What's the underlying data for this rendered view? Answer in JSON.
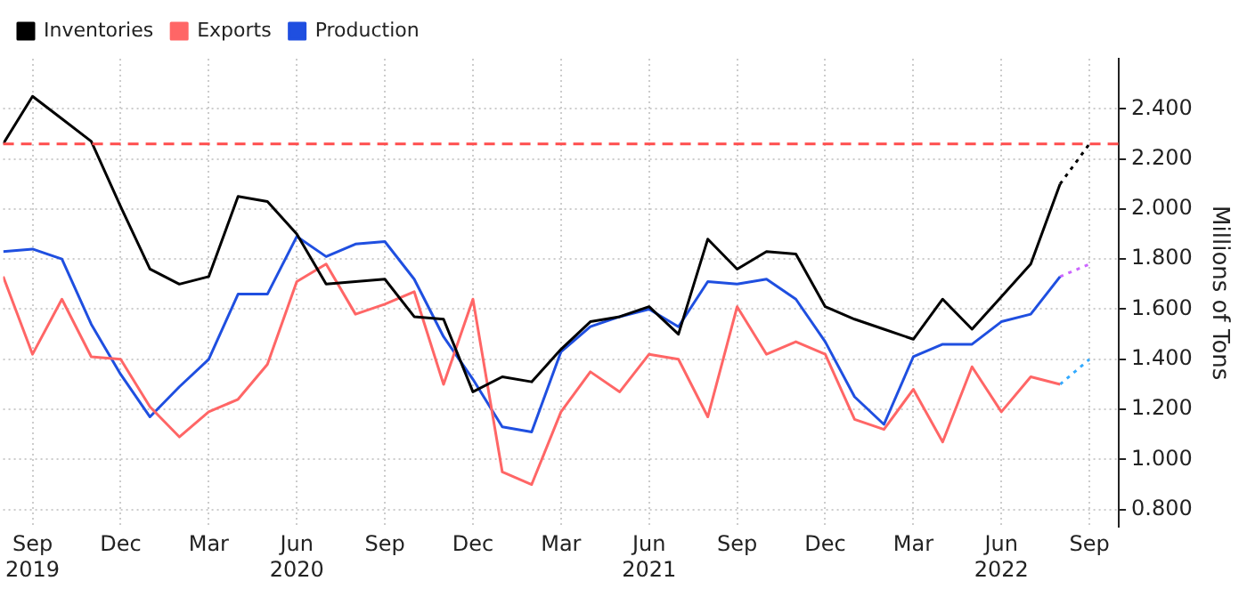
{
  "chart_data": {
    "type": "line",
    "ylabel": "Millions of Tons",
    "x": [
      "2019-08",
      "2019-09",
      "2019-10",
      "2019-11",
      "2019-12",
      "2020-01",
      "2020-02",
      "2020-03",
      "2020-04",
      "2020-05",
      "2020-06",
      "2020-07",
      "2020-08",
      "2020-09",
      "2020-10",
      "2020-11",
      "2020-12",
      "2021-01",
      "2021-02",
      "2021-03",
      "2021-04",
      "2021-05",
      "2021-06",
      "2021-07",
      "2021-08",
      "2021-09",
      "2021-10",
      "2021-11",
      "2021-12",
      "2022-01",
      "2022-02",
      "2022-03",
      "2022-04",
      "2022-05",
      "2022-06",
      "2022-07",
      "2022-08"
    ],
    "series": [
      {
        "name": "Inventories",
        "color": "#000000",
        "values": [
          2.26,
          2.45,
          2.36,
          2.27,
          2.01,
          1.76,
          1.7,
          1.73,
          2.05,
          2.03,
          1.9,
          1.7,
          1.71,
          1.72,
          1.57,
          1.56,
          1.27,
          1.33,
          1.31,
          1.44,
          1.55,
          1.57,
          1.61,
          1.5,
          1.88,
          1.76,
          1.83,
          1.82,
          1.61,
          1.56,
          1.52,
          1.48,
          1.64,
          1.52,
          1.65,
          1.78,
          2.1
        ]
      },
      {
        "name": "Exports",
        "color": "#ff6666",
        "values": [
          1.73,
          1.42,
          1.64,
          1.41,
          1.4,
          1.21,
          1.09,
          1.19,
          1.24,
          1.38,
          1.71,
          1.78,
          1.58,
          1.62,
          1.67,
          1.3,
          1.64,
          0.95,
          0.9,
          1.19,
          1.35,
          1.27,
          1.42,
          1.4,
          1.17,
          1.61,
          1.42,
          1.47,
          1.42,
          1.16,
          1.12,
          1.28,
          1.07,
          1.37,
          1.19,
          1.33,
          1.3
        ]
      },
      {
        "name": "Production",
        "color": "#1f4fe0",
        "values": [
          1.83,
          1.84,
          1.8,
          1.54,
          1.34,
          1.17,
          1.29,
          1.4,
          1.66,
          1.66,
          1.89,
          1.81,
          1.86,
          1.87,
          1.72,
          1.49,
          1.32,
          1.13,
          1.11,
          1.43,
          1.53,
          1.57,
          1.6,
          1.53,
          1.71,
          1.7,
          1.72,
          1.64,
          1.47,
          1.25,
          1.14,
          1.41,
          1.46,
          1.46,
          1.55,
          1.58,
          1.73
        ]
      },
      {
        "x": [
          "2022-08",
          "2022-09"
        ],
        "color": "#000000",
        "line_style": "dotted",
        "values": [
          2.1,
          2.26
        ]
      },
      {
        "x": [
          "2022-08",
          "2022-09"
        ],
        "color": "#cc66ff",
        "line_style": "dotted",
        "values": [
          1.73,
          1.78
        ]
      },
      {
        "x": [
          "2022-08",
          "2022-09"
        ],
        "color": "#33aaff",
        "line_style": "dotted",
        "values": [
          1.3,
          1.4
        ]
      }
    ],
    "xlim": [
      "2019-08",
      "2022-10"
    ],
    "xticks": [
      {
        "value": "2019-09",
        "label": "Sep\n2019"
      },
      {
        "value": "2019-12",
        "label": "Dec"
      },
      {
        "value": "2020-03",
        "label": "Mar"
      },
      {
        "value": "2020-06",
        "label": "Jun\n2020"
      },
      {
        "value": "2020-09",
        "label": "Sep"
      },
      {
        "value": "2020-12",
        "label": "Dec"
      },
      {
        "value": "2021-03",
        "label": "Mar"
      },
      {
        "value": "2021-06",
        "label": "Jun\n2021"
      },
      {
        "value": "2021-09",
        "label": "Sep"
      },
      {
        "value": "2021-12",
        "label": "Dec"
      },
      {
        "value": "2022-03",
        "label": "Mar"
      },
      {
        "value": "2022-06",
        "label": "Jun\n2022"
      },
      {
        "value": "2022-09",
        "label": "Sep"
      }
    ],
    "ylim": [
      0.73,
      2.6
    ],
    "yticks": [
      {
        "value": 0.8,
        "label": "0.800"
      },
      {
        "value": 1.0,
        "label": "1.000"
      },
      {
        "value": 1.2,
        "label": "1.200"
      },
      {
        "value": 1.4,
        "label": "1.400"
      },
      {
        "value": 1.6,
        "label": "1.600"
      },
      {
        "value": 1.8,
        "label": "1.800"
      },
      {
        "value": 2.0,
        "label": "2.000"
      },
      {
        "value": 2.2,
        "label": "2.200"
      },
      {
        "value": 2.4,
        "label": "2.400"
      }
    ],
    "ref_lines": [
      {
        "axis": "y",
        "value": 2.26,
        "color": "#ff4d4d",
        "line_style": "dashed"
      }
    ],
    "grid": true,
    "legend": "top left",
    "marker": "none",
    "line_style": "solid"
  }
}
